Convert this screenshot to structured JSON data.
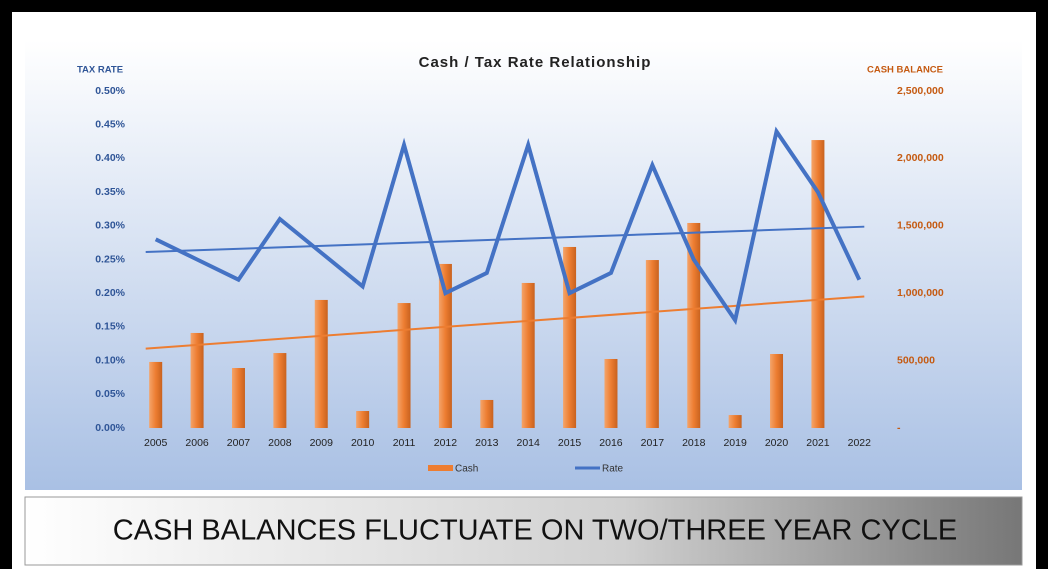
{
  "chart_data": {
    "type": "combo",
    "title": "Cash / Tax Rate Relationship",
    "y_label": "TAX RATE",
    "y2_label": "CASH BALANCE",
    "categories": [
      "2005",
      "2006",
      "2007",
      "2008",
      "2009",
      "2010",
      "2011",
      "2012",
      "2013",
      "2014",
      "2015",
      "2016",
      "2017",
      "2018",
      "2019",
      "2020",
      "2021",
      "2022"
    ],
    "series": [
      {
        "name": "Cash",
        "type": "bar",
        "axis": "y2",
        "color": "#ed7d31",
        "trendline": true,
        "values": [
          490000,
          705000,
          445000,
          556000,
          950000,
          126000,
          927000,
          1217000,
          208000,
          1076000,
          1343000,
          512000,
          1246000,
          1521000,
          96000,
          549000,
          2136000,
          0
        ]
      },
      {
        "name": "Rate",
        "type": "line",
        "axis": "y",
        "color": "#4472c4",
        "trendline": true,
        "values": [
          0.28,
          0.25,
          0.22,
          0.31,
          0.26,
          0.21,
          0.42,
          0.2,
          0.23,
          0.42,
          0.2,
          0.23,
          0.39,
          0.25,
          0.16,
          0.44,
          0.35,
          0.22
        ]
      }
    ],
    "ylim": [
      0,
      0.5
    ],
    "yticks": [
      {
        "value": 0,
        "label": "0.00%"
      },
      {
        "value": 0.05,
        "label": "0.05%"
      },
      {
        "value": 0.1,
        "label": "0.10%"
      },
      {
        "value": 0.15,
        "label": "0.15%"
      },
      {
        "value": 0.2,
        "label": "0.20%"
      },
      {
        "value": 0.25,
        "label": "0.25%"
      },
      {
        "value": 0.3,
        "label": "0.30%"
      },
      {
        "value": 0.35,
        "label": "0.35%"
      },
      {
        "value": 0.4,
        "label": "0.40%"
      },
      {
        "value": 0.45,
        "label": "0.45%"
      },
      {
        "value": 0.5,
        "label": "0.50%"
      }
    ],
    "y2lim": [
      0,
      2500000
    ],
    "y2ticks": [
      {
        "value": 0,
        "label": "-"
      },
      {
        "value": 500000,
        "label": "500,000"
      },
      {
        "value": 1000000,
        "label": "1,000,000"
      },
      {
        "value": 1500000,
        "label": "1,500,000"
      },
      {
        "value": 2000000,
        "label": "2,000,000"
      },
      {
        "value": 2500000,
        "label": "2,500,000"
      }
    ],
    "legend": "bottom"
  },
  "banner": "CASH BALANCES FLUCTUATE ON TWO/THREE YEAR CYCLE"
}
